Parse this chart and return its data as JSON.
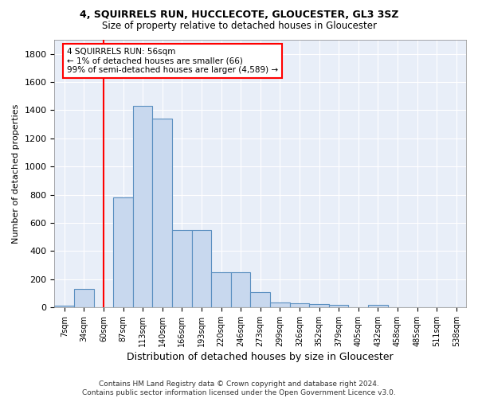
{
  "title": "4, SQUIRRELS RUN, HUCCLECOTE, GLOUCESTER, GL3 3SZ",
  "subtitle": "Size of property relative to detached houses in Gloucester",
  "xlabel": "Distribution of detached houses by size in Gloucester",
  "ylabel": "Number of detached properties",
  "bar_color": "#c8d8ee",
  "bar_edge_color": "#5a8fc0",
  "categories": [
    "7sqm",
    "34sqm",
    "60sqm",
    "87sqm",
    "113sqm",
    "140sqm",
    "166sqm",
    "193sqm",
    "220sqm",
    "246sqm",
    "273sqm",
    "299sqm",
    "326sqm",
    "352sqm",
    "379sqm",
    "405sqm",
    "432sqm",
    "458sqm",
    "485sqm",
    "511sqm",
    "538sqm"
  ],
  "values": [
    10,
    130,
    0,
    780,
    1430,
    1340,
    550,
    550,
    250,
    250,
    110,
    35,
    30,
    20,
    15,
    0,
    15,
    0,
    0,
    0,
    0
  ],
  "ylim": [
    0,
    1900
  ],
  "yticks": [
    0,
    200,
    400,
    600,
    800,
    1000,
    1200,
    1400,
    1600,
    1800
  ],
  "annotation_text": "4 SQUIRRELS RUN: 56sqm\n← 1% of detached houses are smaller (66)\n99% of semi-detached houses are larger (4,589) →",
  "red_line_index": 2,
  "footer_line1": "Contains HM Land Registry data © Crown copyright and database right 2024.",
  "footer_line2": "Contains public sector information licensed under the Open Government Licence v3.0.",
  "background_color": "#ffffff",
  "plot_bg_color": "#e8eef8",
  "grid_color": "#ffffff"
}
